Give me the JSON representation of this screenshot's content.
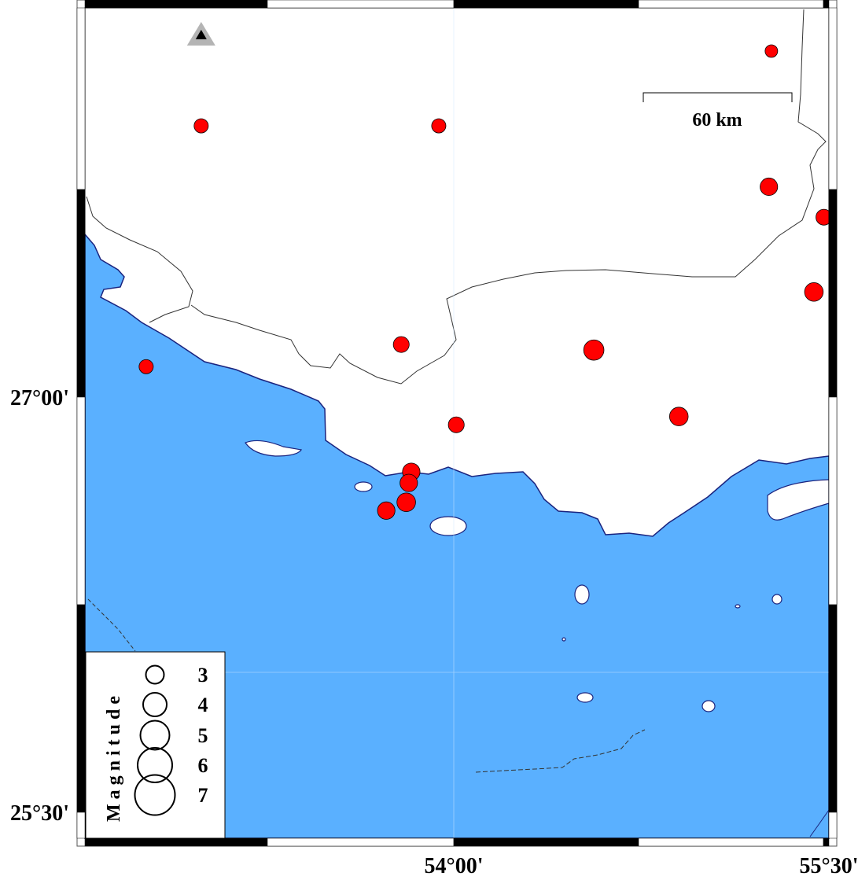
{
  "map": {
    "colors": {
      "water": "#5ab0ff",
      "land": "#ffffff",
      "coast": "#1a237e",
      "event": "#ff0000",
      "station_outer": "#b4b4b4",
      "station_inner": "#000000"
    },
    "x_ticks": [
      {
        "lon": 54.0,
        "label": "54°00'"
      },
      {
        "lon": 55.5,
        "label": "55°30'"
      }
    ],
    "y_ticks": [
      {
        "lat": 27.0,
        "label": "27°00'"
      },
      {
        "lat": 25.5,
        "label": "25°30'"
      }
    ],
    "scale_bar": {
      "label": "60 km"
    },
    "station": {
      "lon": 52.99,
      "lat": 28.31,
      "icon": "triangle"
    },
    "events": [
      {
        "lon": 52.99,
        "lat": 27.98,
        "mag": 2.3
      },
      {
        "lon": 53.94,
        "lat": 27.98,
        "mag": 2.3
      },
      {
        "lon": 55.27,
        "lat": 28.25,
        "mag": 2.0
      },
      {
        "lon": 55.26,
        "lat": 27.76,
        "mag": 2.9
      },
      {
        "lon": 55.48,
        "lat": 27.65,
        "mag": 2.6
      },
      {
        "lon": 55.44,
        "lat": 27.38,
        "mag": 3.1
      },
      {
        "lon": 54.56,
        "lat": 27.17,
        "mag": 3.4
      },
      {
        "lon": 53.79,
        "lat": 27.19,
        "mag": 2.6
      },
      {
        "lon": 52.77,
        "lat": 27.11,
        "mag": 2.3
      },
      {
        "lon": 54.01,
        "lat": 26.9,
        "mag": 2.6
      },
      {
        "lon": 54.9,
        "lat": 26.93,
        "mag": 3.1
      },
      {
        "lon": 53.83,
        "lat": 26.73,
        "mag": 2.9
      },
      {
        "lon": 53.82,
        "lat": 26.69,
        "mag": 2.9
      },
      {
        "lon": 53.81,
        "lat": 26.62,
        "mag": 3.1
      },
      {
        "lon": 53.73,
        "lat": 26.59,
        "mag": 2.9
      }
    ]
  },
  "legend": {
    "title": "Magnitude",
    "items": [
      {
        "mag": 3,
        "label": "3"
      },
      {
        "mag": 4,
        "label": "4"
      },
      {
        "mag": 5,
        "label": "5"
      },
      {
        "mag": 6,
        "label": "6"
      },
      {
        "mag": 7,
        "label": "7"
      }
    ]
  }
}
